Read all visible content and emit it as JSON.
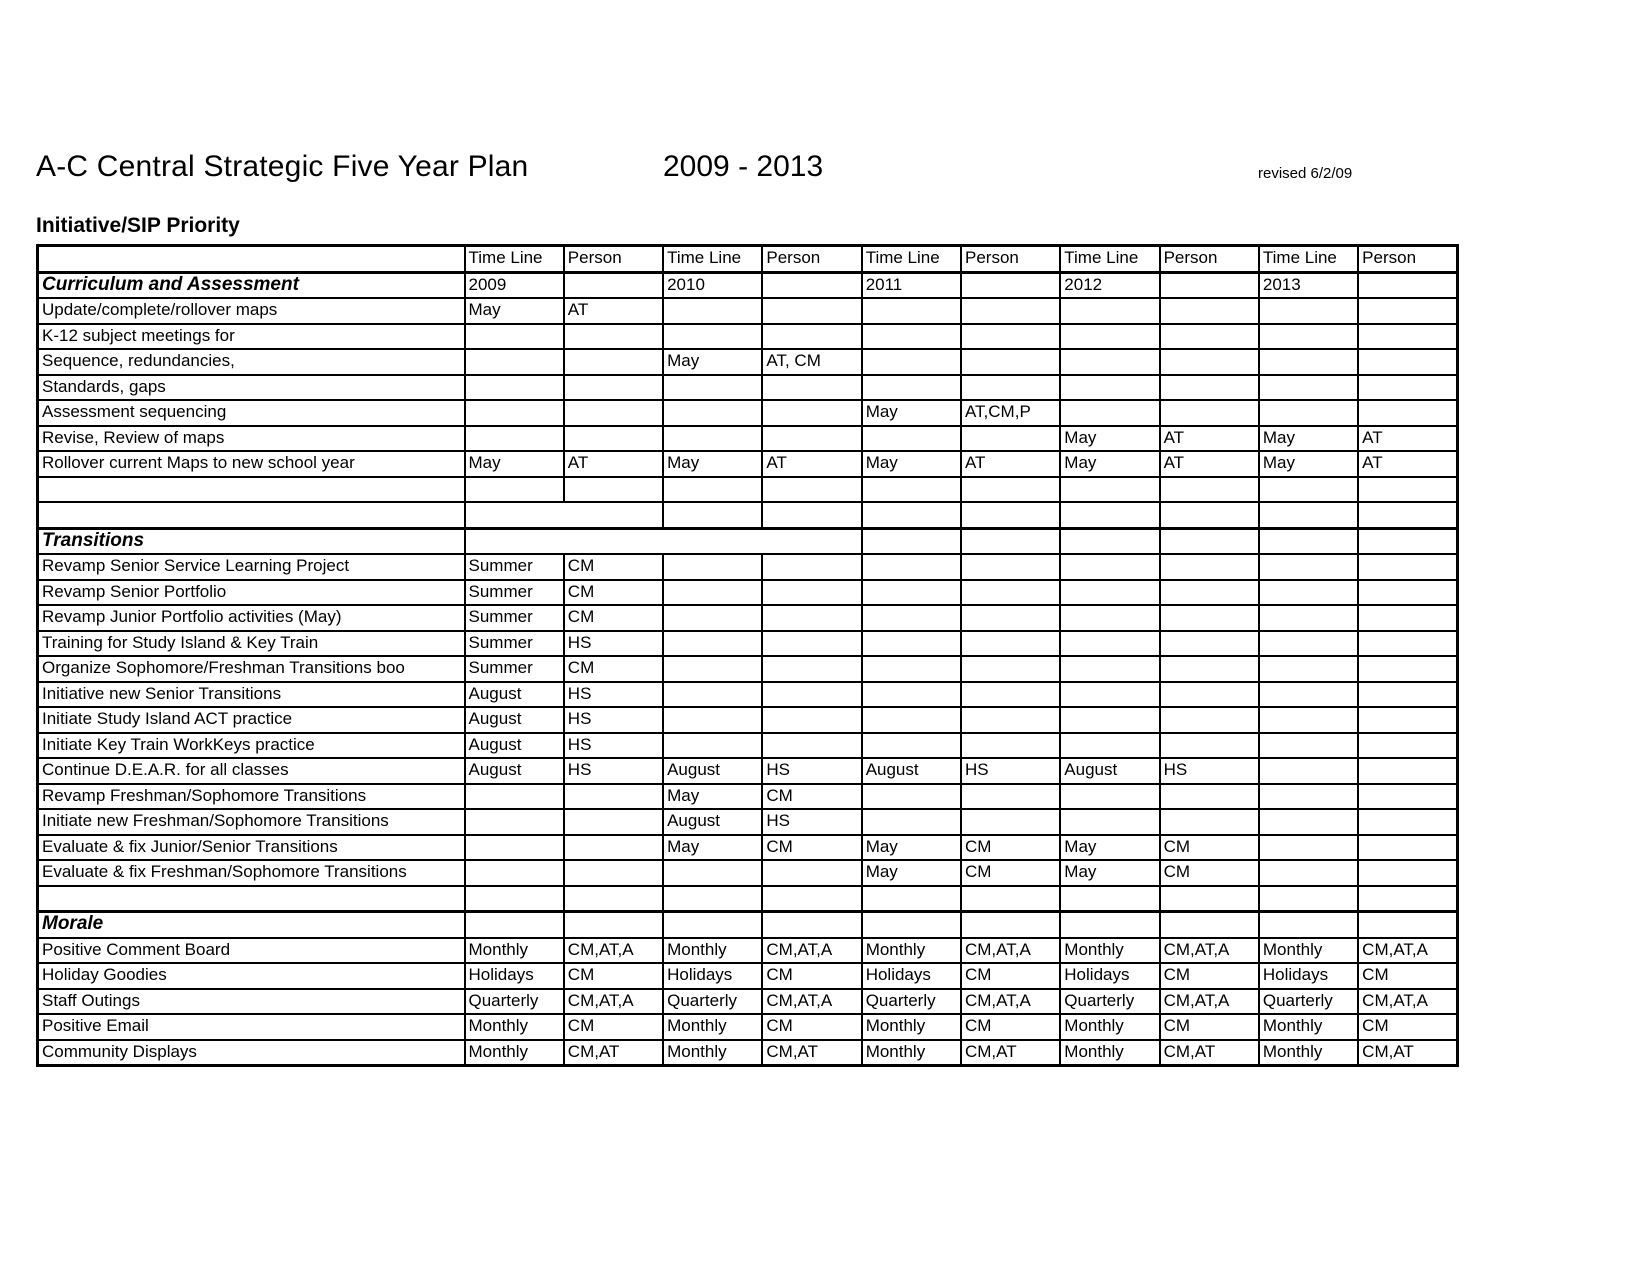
{
  "header": {
    "title": "A-C Central Strategic Five Year Plan",
    "year_range": "2009 - 2013",
    "revised": "revised 6/2/09"
  },
  "table": {
    "heading": "Initiative/SIP Priority",
    "col_headers": [
      "Time Line",
      "Person"
    ],
    "year_groups": 5,
    "years": [
      "2009",
      "2010",
      "2011",
      "2012",
      "2013"
    ],
    "rows": [
      {
        "kind": "section",
        "label": "Curriculum and Assessment",
        "cells": [
          "2009",
          "",
          "2010",
          "",
          "2011",
          "",
          "2012",
          "",
          {
            "v": "2013",
            "align": "right"
          },
          ""
        ]
      },
      {
        "kind": "item",
        "label": "Update/complete/rollover maps",
        "cells": [
          "May",
          "AT",
          "",
          "",
          "",
          "",
          "",
          "",
          "",
          ""
        ]
      },
      {
        "kind": "item",
        "label": "K-12 subject meetings for",
        "cells": [
          "",
          "",
          "",
          "",
          "",
          "",
          "",
          "",
          "",
          ""
        ]
      },
      {
        "kind": "item",
        "label": "Sequence, redundancies,",
        "cells": [
          "",
          "",
          "May",
          "AT, CM",
          "",
          "",
          "",
          "",
          "",
          ""
        ]
      },
      {
        "kind": "item",
        "label": "Standards, gaps",
        "cells": [
          "",
          "",
          "",
          "",
          "",
          "",
          "",
          "",
          "",
          ""
        ]
      },
      {
        "kind": "item",
        "label": "Assessment sequencing",
        "cells": [
          "",
          "",
          "",
          "",
          "May",
          "AT,CM,P",
          "",
          "",
          "",
          ""
        ]
      },
      {
        "kind": "item",
        "label": "Revise, Review of maps",
        "cells": [
          "",
          "",
          "",
          "",
          "",
          "",
          "May",
          "AT",
          "May",
          "AT"
        ]
      },
      {
        "kind": "item",
        "label": "Rollover current Maps to new school year",
        "cells": [
          "May",
          "AT",
          "May",
          "AT",
          "May",
          "AT",
          "May",
          "AT",
          "May",
          "AT"
        ]
      },
      {
        "kind": "empty",
        "label": "",
        "cells": [
          "",
          "",
          "",
          "",
          "",
          "",
          "",
          "",
          "",
          ""
        ]
      },
      {
        "kind": "empty",
        "label": "",
        "merge": 2,
        "cells": [
          "",
          "",
          "",
          "",
          "",
          "",
          "",
          "",
          "",
          ""
        ]
      },
      {
        "kind": "section",
        "label": "Transitions",
        "merge": 4,
        "cells": [
          "",
          "",
          "",
          "",
          "",
          "",
          "",
          "",
          "",
          ""
        ]
      },
      {
        "kind": "item",
        "label": "Revamp Senior Service Learning Project",
        "cells": [
          "Summer",
          "CM",
          "",
          "",
          "",
          "",
          "",
          "",
          "",
          ""
        ]
      },
      {
        "kind": "item",
        "label": "Revamp Senior Portfolio",
        "cells": [
          "Summer",
          "CM",
          "",
          "",
          "",
          "",
          "",
          "",
          "",
          ""
        ]
      },
      {
        "kind": "item",
        "label": "Revamp Junior Portfolio activities (May)",
        "cells": [
          "Summer",
          "CM",
          "",
          "",
          "",
          "",
          "",
          "",
          "",
          ""
        ]
      },
      {
        "kind": "item",
        "label": "Training for Study Island & Key Train",
        "cells": [
          "Summer",
          "HS",
          "",
          "",
          "",
          "",
          "",
          "",
          "",
          ""
        ]
      },
      {
        "kind": "item",
        "label": "Organize Sophomore/Freshman Transitions boo",
        "cells": [
          "Summer",
          "CM",
          "",
          "",
          "",
          "",
          "",
          "",
          "",
          ""
        ]
      },
      {
        "kind": "item",
        "label": "Initiative new Senior Transitions",
        "cells": [
          "August",
          "HS",
          "",
          "",
          "",
          "",
          "",
          "",
          "",
          ""
        ]
      },
      {
        "kind": "item",
        "label": "Initiate Study Island ACT practice",
        "cells": [
          "August",
          "HS",
          "",
          "",
          "",
          "",
          "",
          "",
          "",
          ""
        ]
      },
      {
        "kind": "item",
        "label": "Initiate Key Train WorkKeys practice",
        "cells": [
          "August",
          "HS",
          "",
          "",
          "",
          "",
          "",
          "",
          "",
          ""
        ]
      },
      {
        "kind": "item",
        "label": "Continue D.E.A.R. for all classes",
        "cells": [
          "August",
          "HS",
          "August",
          "HS",
          "August",
          "HS",
          "August",
          "HS",
          "",
          ""
        ]
      },
      {
        "kind": "item",
        "label": "Revamp Freshman/Sophomore Transitions",
        "cells": [
          "",
          "",
          "May",
          "CM",
          "",
          "",
          "",
          "",
          "",
          ""
        ]
      },
      {
        "kind": "item",
        "label": "Initiate new Freshman/Sophomore Transitions",
        "cells": [
          "",
          "",
          "August",
          "HS",
          "",
          "",
          "",
          "",
          "",
          ""
        ]
      },
      {
        "kind": "item",
        "label": "Evaluate & fix Junior/Senior Transitions",
        "cells": [
          "",
          "",
          "May",
          "CM",
          "May",
          "CM",
          "May",
          "CM",
          "",
          ""
        ]
      },
      {
        "kind": "item",
        "label": "Evaluate & fix Freshman/Sophomore  Transitions",
        "cells": [
          "",
          "",
          "",
          "",
          "May",
          "CM",
          "May",
          "CM",
          "",
          ""
        ]
      },
      {
        "kind": "empty",
        "label": "",
        "cells": [
          "",
          "",
          "",
          "",
          "",
          "",
          "",
          "",
          "",
          ""
        ]
      },
      {
        "kind": "section",
        "label": "Morale",
        "cells": [
          "",
          "",
          "",
          "",
          "",
          "",
          "",
          "",
          "",
          ""
        ]
      },
      {
        "kind": "item",
        "label": "Positive Comment Board",
        "cells": [
          "Monthly",
          "CM,AT,A",
          "Monthly",
          "CM,AT,A",
          "Monthly",
          "CM,AT,A",
          "Monthly",
          "CM,AT,A",
          "Monthly",
          "CM,AT,A"
        ]
      },
      {
        "kind": "item",
        "label": "Holiday Goodies",
        "cells": [
          "Holidays",
          "CM",
          "Holidays",
          "CM",
          "Holidays",
          "CM",
          "Holidays",
          "CM",
          "Holidays",
          "CM"
        ]
      },
      {
        "kind": "item",
        "label": "Staff Outings",
        "cells": [
          "Quarterly",
          "CM,AT,A",
          "Quarterly",
          "CM,AT,A",
          "Quarterly",
          "CM,AT,A",
          "Quarterly",
          "CM,AT,A",
          "Quarterly",
          "CM,AT,A"
        ]
      },
      {
        "kind": "item",
        "label": "Positive Email",
        "cells": [
          "Monthly",
          "CM",
          "Monthly",
          "CM",
          "Monthly",
          "CM",
          "Monthly",
          "CM",
          "Monthly",
          "CM"
        ]
      },
      {
        "kind": "item",
        "label": "Community Displays",
        "cells": [
          "Monthly",
          "CM,AT",
          "Monthly",
          "CM,AT",
          "Monthly",
          "CM,AT",
          "Monthly",
          "CM,AT",
          "Monthly",
          "CM,AT"
        ]
      }
    ]
  }
}
